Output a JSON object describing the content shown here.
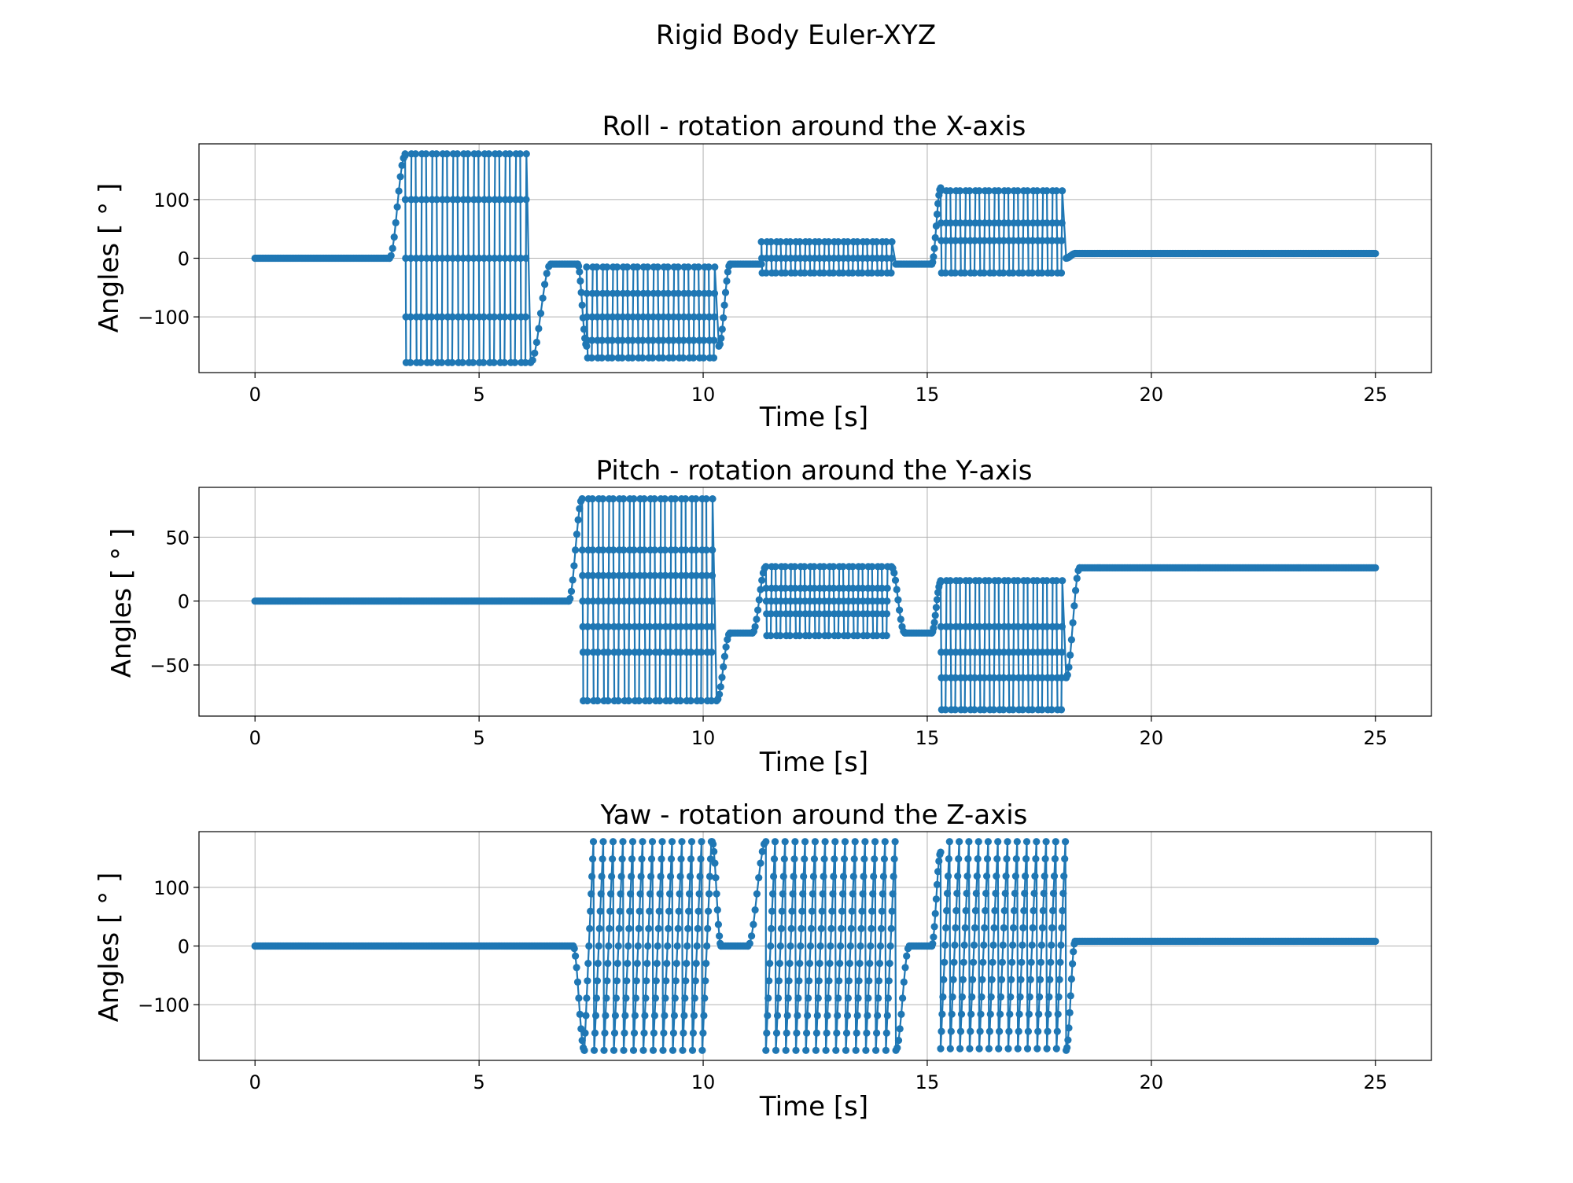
{
  "figure": {
    "title": "Rigid Body Euler-XYZ"
  },
  "chart_data": [
    {
      "type": "line",
      "title": "Roll - rotation around the X-axis",
      "xlabel": "Time [s]",
      "ylabel": "Angles [ ° ]",
      "xlim": [
        -1.25,
        26.25
      ],
      "ylim": [
        -195,
        195
      ],
      "xticks": [
        0,
        5,
        10,
        15,
        20,
        25
      ],
      "yticks": [
        -100,
        0,
        100
      ],
      "ytick_labels": [
        "−100",
        "0",
        "100"
      ],
      "grid": true,
      "marker": "circle",
      "color": "#1f77b4",
      "segments": [
        {
          "kind": "line",
          "x": [
            0,
            3.0
          ],
          "y": [
            0,
            0
          ]
        },
        {
          "kind": "rise",
          "x": [
            3.0,
            3.35
          ],
          "y": [
            0,
            175
          ]
        },
        {
          "kind": "osc",
          "t0": 3.35,
          "t1": 6.15,
          "cycles": 12,
          "lo": -178,
          "hi": 178,
          "inner": [
            -100,
            0,
            100
          ]
        },
        {
          "kind": "rise",
          "x": [
            6.15,
            6.6
          ],
          "y": [
            -178,
            -10
          ]
        },
        {
          "kind": "line",
          "x": [
            6.6,
            7.2
          ],
          "y": [
            -10,
            -10
          ]
        },
        {
          "kind": "rise",
          "x": [
            7.2,
            7.4
          ],
          "y": [
            -10,
            -150
          ]
        },
        {
          "kind": "osc",
          "t0": 7.4,
          "t1": 10.35,
          "cycles": 13,
          "lo": -170,
          "hi": -15,
          "inner": [
            -140,
            -100,
            -60
          ]
        },
        {
          "kind": "rise",
          "x": [
            10.35,
            10.6
          ],
          "y": [
            -150,
            -10
          ]
        },
        {
          "kind": "line",
          "x": [
            10.6,
            11.3
          ],
          "y": [
            -10,
            -10
          ]
        },
        {
          "kind": "osc",
          "t0": 11.3,
          "t1": 14.3,
          "cycles": 14,
          "lo": -25,
          "hi": 28,
          "inner": [
            0
          ]
        },
        {
          "kind": "line",
          "x": [
            14.3,
            15.1
          ],
          "y": [
            -10,
            -10
          ]
        },
        {
          "kind": "rise",
          "x": [
            15.1,
            15.3
          ],
          "y": [
            -10,
            120
          ]
        },
        {
          "kind": "osc",
          "t0": 15.3,
          "t1": 18.1,
          "cycles": 13,
          "lo": -25,
          "hi": 115,
          "inner": [
            30,
            60
          ]
        },
        {
          "kind": "rise",
          "x": [
            18.1,
            18.3
          ],
          "y": [
            0,
            8
          ]
        },
        {
          "kind": "line",
          "x": [
            18.3,
            25
          ],
          "y": [
            8,
            8
          ]
        }
      ]
    },
    {
      "type": "line",
      "title": "Pitch - rotation around the Y-axis",
      "xlabel": "Time [s]",
      "ylabel": "Angles [ ° ]",
      "xlim": [
        -1.25,
        26.25
      ],
      "ylim": [
        -90,
        89
      ],
      "xticks": [
        0,
        5,
        10,
        15,
        20,
        25
      ],
      "yticks": [
        -50,
        0,
        50
      ],
      "ytick_labels": [
        "−50",
        "0",
        "50"
      ],
      "grid": true,
      "marker": "circle",
      "color": "#1f77b4",
      "segments": [
        {
          "kind": "line",
          "x": [
            0,
            7.0
          ],
          "y": [
            0,
            0
          ]
        },
        {
          "kind": "rise",
          "x": [
            7.0,
            7.3
          ],
          "y": [
            0,
            80
          ]
        },
        {
          "kind": "osc",
          "t0": 7.3,
          "t1": 10.3,
          "cycles": 13,
          "lo": -78,
          "hi": 80,
          "inner": [
            -40,
            -20,
            0,
            20,
            40
          ]
        },
        {
          "kind": "rise",
          "x": [
            10.3,
            10.6
          ],
          "y": [
            -78,
            -25
          ]
        },
        {
          "kind": "line",
          "x": [
            10.6,
            11.1
          ],
          "y": [
            -25,
            -25
          ]
        },
        {
          "kind": "rise",
          "x": [
            11.1,
            11.4
          ],
          "y": [
            -25,
            27
          ]
        },
        {
          "kind": "osc",
          "t0": 11.4,
          "t1": 14.2,
          "cycles": 13,
          "lo": -27,
          "hi": 27,
          "inner": [
            -10,
            0,
            10
          ]
        },
        {
          "kind": "rise",
          "x": [
            14.2,
            14.5
          ],
          "y": [
            27,
            -25
          ]
        },
        {
          "kind": "line",
          "x": [
            14.5,
            15.1
          ],
          "y": [
            -25,
            -25
          ]
        },
        {
          "kind": "rise",
          "x": [
            15.1,
            15.3
          ],
          "y": [
            -25,
            15
          ]
        },
        {
          "kind": "osc",
          "t0": 15.3,
          "t1": 18.1,
          "cycles": 13,
          "lo": -85,
          "hi": 16,
          "inner": [
            -60,
            -40,
            -20
          ]
        },
        {
          "kind": "rise",
          "x": [
            18.1,
            18.4
          ],
          "y": [
            -60,
            26
          ]
        },
        {
          "kind": "line",
          "x": [
            18.4,
            25
          ],
          "y": [
            26,
            26
          ]
        }
      ]
    },
    {
      "type": "line",
      "title": "Yaw - rotation around the Z-axis",
      "xlabel": "Time [s]",
      "ylabel": "Angles [ ° ]",
      "xlim": [
        -1.25,
        26.25
      ],
      "ylim": [
        -195,
        195
      ],
      "xticks": [
        0,
        5,
        10,
        15,
        20,
        25
      ],
      "yticks": [
        -100,
        0,
        100
      ],
      "ytick_labels": [
        "−100",
        "0",
        "100"
      ],
      "grid": true,
      "marker": "circle",
      "color": "#1f77b4",
      "segments": [
        {
          "kind": "line",
          "x": [
            0,
            7.1
          ],
          "y": [
            0,
            0
          ]
        },
        {
          "kind": "rise",
          "x": [
            7.1,
            7.35
          ],
          "y": [
            0,
            -178
          ]
        },
        {
          "kind": "saw",
          "t0": 7.35,
          "t1": 10.2,
          "cycles": 13,
          "lo": -178,
          "hi": 178
        },
        {
          "kind": "rise",
          "x": [
            10.2,
            10.4
          ],
          "y": [
            178,
            0
          ]
        },
        {
          "kind": "line",
          "x": [
            10.4,
            11.0
          ],
          "y": [
            0,
            0
          ]
        },
        {
          "kind": "rise",
          "x": [
            11.0,
            11.4
          ],
          "y": [
            0,
            178
          ]
        },
        {
          "kind": "saw",
          "t0": 11.4,
          "t1": 14.3,
          "cycles": 13,
          "lo": -178,
          "hi": 178
        },
        {
          "kind": "rise",
          "x": [
            14.3,
            14.6
          ],
          "y": [
            -178,
            0
          ]
        },
        {
          "kind": "line",
          "x": [
            14.6,
            15.1
          ],
          "y": [
            0,
            0
          ]
        },
        {
          "kind": "rise",
          "x": [
            15.1,
            15.3
          ],
          "y": [
            0,
            160
          ]
        },
        {
          "kind": "saw",
          "t0": 15.3,
          "t1": 18.1,
          "cycles": 13,
          "lo": -175,
          "hi": 178
        },
        {
          "kind": "rise",
          "x": [
            18.1,
            18.3
          ],
          "y": [
            -178,
            8
          ]
        },
        {
          "kind": "line",
          "x": [
            18.3,
            25
          ],
          "y": [
            8,
            8
          ]
        }
      ]
    }
  ]
}
